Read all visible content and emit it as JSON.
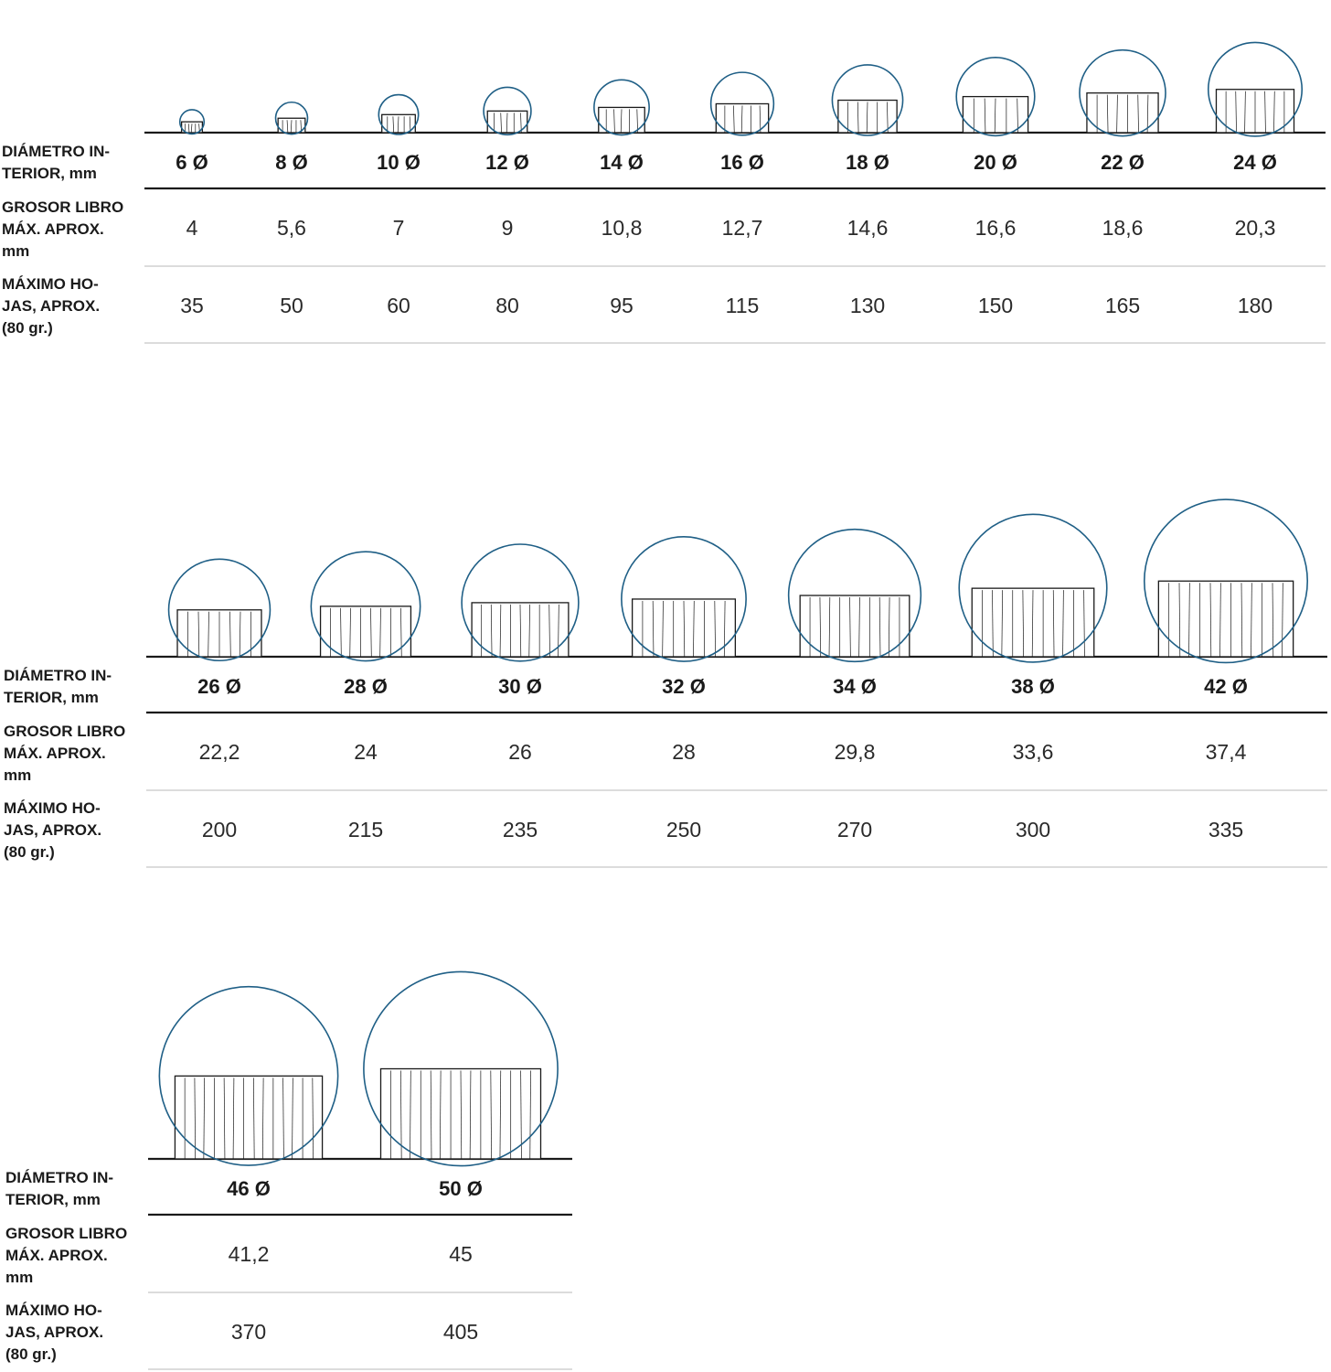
{
  "row_labels": {
    "diameter": [
      "DIÁMETRO IN-",
      "TERIOR, mm"
    ],
    "thickness": [
      "GROSOR  LIBRO",
      "MÁX. APROX.",
      "mm"
    ],
    "sheets": [
      "MÁXIMO HO-",
      "JAS, APROX.",
      "(80 gr.)"
    ]
  },
  "colors": {
    "ring": "#1f5f86",
    "stack": "#1a1a1a",
    "rule": "#1a1a1a",
    "thin_rule": "#b8b8b8"
  },
  "chart_data": {
    "type": "table",
    "groups": [
      {
        "columns": [
          {
            "diameter": "6 Ø",
            "thickness": "4",
            "sheets": "35",
            "d": 6
          },
          {
            "diameter": "8 Ø",
            "thickness": "5,6",
            "sheets": "50",
            "d": 8
          },
          {
            "diameter": "10 Ø",
            "thickness": "7",
            "sheets": "60",
            "d": 10
          },
          {
            "diameter": "12 Ø",
            "thickness": "9",
            "sheets": "80",
            "d": 12
          },
          {
            "diameter": "14 Ø",
            "thickness": "10,8",
            "sheets": "95",
            "d": 14
          },
          {
            "diameter": "16 Ø",
            "thickness": "12,7",
            "sheets": "115",
            "d": 16
          },
          {
            "diameter": "18 Ø",
            "thickness": "14,6",
            "sheets": "130",
            "d": 18
          },
          {
            "diameter": "20 Ø",
            "thickness": "16,6",
            "sheets": "150",
            "d": 20
          },
          {
            "diameter": "22 Ø",
            "thickness": "18,6",
            "sheets": "165",
            "d": 22
          },
          {
            "diameter": "24 Ø",
            "thickness": "20,3",
            "sheets": "180",
            "d": 24
          }
        ]
      },
      {
        "columns": [
          {
            "diameter": "26 Ø",
            "thickness": "22,2",
            "sheets": "200",
            "d": 26
          },
          {
            "diameter": "28 Ø",
            "thickness": "24",
            "sheets": "215",
            "d": 28
          },
          {
            "diameter": "30 Ø",
            "thickness": "26",
            "sheets": "235",
            "d": 30
          },
          {
            "diameter": "32 Ø",
            "thickness": "28",
            "sheets": "250",
            "d": 32
          },
          {
            "diameter": "34 Ø",
            "thickness": "29,8",
            "sheets": "270",
            "d": 34
          },
          {
            "diameter": "38 Ø",
            "thickness": "33,6",
            "sheets": "300",
            "d": 38
          },
          {
            "diameter": "42 Ø",
            "thickness": "37,4",
            "sheets": "335",
            "d": 42
          }
        ]
      },
      {
        "columns": [
          {
            "diameter": "46 Ø",
            "thickness": "41,2",
            "sheets": "370",
            "d": 46
          },
          {
            "diameter": "50 Ø",
            "thickness": "45",
            "sheets": "405",
            "d": 50
          }
        ]
      }
    ]
  }
}
